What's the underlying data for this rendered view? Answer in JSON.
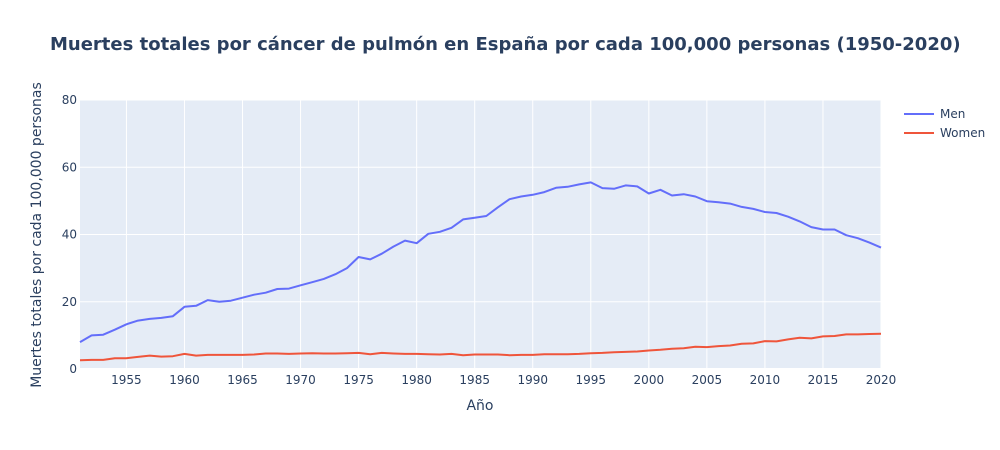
{
  "chart_data": {
    "type": "line",
    "title": "Muertes totales por cáncer de pulmón en España por cada 100,000 personas (1950-2020)",
    "xlabel": "Año",
    "ylabel": "Muertes totales por cada 100,000 personas",
    "xlim": [
      1951,
      2020
    ],
    "ylim": [
      0,
      80
    ],
    "x_ticks": [
      1955,
      1960,
      1965,
      1970,
      1975,
      1980,
      1985,
      1990,
      1995,
      2000,
      2005,
      2010,
      2015,
      2020
    ],
    "y_ticks": [
      0,
      20,
      40,
      60,
      80
    ],
    "grid": true,
    "legend_position": "top-right",
    "plot_bg": "#e5ecf6",
    "x": [
      1951,
      1952,
      1953,
      1954,
      1955,
      1956,
      1957,
      1958,
      1959,
      1960,
      1961,
      1962,
      1963,
      1964,
      1965,
      1966,
      1967,
      1968,
      1969,
      1970,
      1971,
      1972,
      1973,
      1974,
      1975,
      1976,
      1977,
      1978,
      1979,
      1980,
      1981,
      1982,
      1983,
      1984,
      1985,
      1986,
      1987,
      1988,
      1989,
      1990,
      1991,
      1992,
      1993,
      1994,
      1995,
      1996,
      1997,
      1998,
      1999,
      2000,
      2001,
      2002,
      2003,
      2004,
      2005,
      2006,
      2007,
      2008,
      2009,
      2010,
      2011,
      2012,
      2013,
      2014,
      2015,
      2016,
      2017,
      2018,
      2019,
      2020
    ],
    "series": [
      {
        "name": "Men",
        "color": "#636efa",
        "values": [
          8.0,
          10.0,
          10.2,
          11.7,
          13.3,
          14.4,
          14.9,
          15.2,
          15.7,
          18.5,
          18.8,
          20.5,
          20.0,
          20.3,
          21.2,
          22.1,
          22.7,
          23.8,
          23.9,
          24.9,
          25.8,
          26.8,
          28.2,
          30.0,
          33.3,
          32.6,
          34.3,
          36.4,
          38.2,
          37.4,
          40.2,
          40.8,
          42.0,
          44.5,
          45.0,
          45.5,
          48.1,
          50.5,
          51.3,
          51.8,
          52.6,
          53.9,
          54.2,
          54.9,
          55.5,
          53.8,
          53.6,
          54.6,
          54.3,
          52.2,
          53.3,
          51.6,
          52.0,
          51.3,
          49.9,
          49.6,
          49.2,
          48.2,
          47.6,
          46.7,
          46.4,
          45.3,
          43.9,
          42.2,
          41.5,
          41.5,
          39.8,
          38.9,
          37.6,
          36.1
        ]
      },
      {
        "name": "Women",
        "color": "#ef553b",
        "values": [
          2.6,
          2.7,
          2.7,
          3.2,
          3.2,
          3.6,
          4.0,
          3.7,
          3.8,
          4.5,
          4.0,
          4.2,
          4.2,
          4.2,
          4.2,
          4.3,
          4.6,
          4.6,
          4.5,
          4.6,
          4.7,
          4.6,
          4.6,
          4.7,
          4.8,
          4.4,
          4.8,
          4.6,
          4.5,
          4.5,
          4.4,
          4.3,
          4.5,
          4.1,
          4.3,
          4.3,
          4.3,
          4.1,
          4.2,
          4.2,
          4.4,
          4.4,
          4.4,
          4.5,
          4.7,
          4.8,
          5.0,
          5.1,
          5.2,
          5.5,
          5.7,
          6.0,
          6.2,
          6.6,
          6.5,
          6.8,
          7.0,
          7.5,
          7.6,
          8.3,
          8.2,
          8.8,
          9.3,
          9.1,
          9.7,
          9.8,
          10.3,
          10.3,
          10.4,
          10.5
        ]
      }
    ]
  }
}
